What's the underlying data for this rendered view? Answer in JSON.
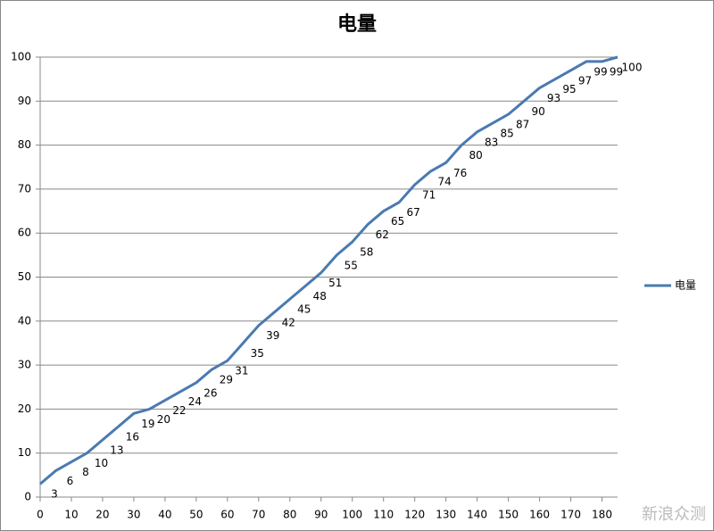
{
  "chart_data": {
    "type": "line",
    "title": "电量",
    "x": [
      0,
      5,
      10,
      15,
      20,
      25,
      30,
      35,
      40,
      45,
      50,
      55,
      60,
      65,
      70,
      75,
      80,
      85,
      90,
      95,
      100,
      105,
      110,
      115,
      120,
      125,
      130,
      135,
      140,
      145,
      150,
      155,
      160,
      165,
      170,
      175,
      180,
      185
    ],
    "series": [
      {
        "name": "电量",
        "color": "#4a7ab0",
        "values": [
          3,
          6,
          8,
          10,
          13,
          16,
          19,
          20,
          22,
          24,
          26,
          29,
          31,
          35,
          39,
          42,
          45,
          48,
          51,
          55,
          58,
          62,
          65,
          67,
          71,
          74,
          76,
          80,
          83,
          85,
          87,
          90,
          93,
          95,
          97,
          99,
          99,
          100
        ]
      }
    ],
    "xlim": [
      0,
      185
    ],
    "xticks": [
      0,
      10,
      20,
      30,
      40,
      50,
      60,
      70,
      80,
      90,
      100,
      110,
      120,
      130,
      140,
      150,
      160,
      170,
      180
    ],
    "ylim": [
      0,
      100
    ],
    "yticks": [
      0,
      10,
      20,
      30,
      40,
      50,
      60,
      70,
      80,
      90,
      100
    ],
    "grid": true,
    "legend": "right",
    "watermark": "新浪众测"
  }
}
